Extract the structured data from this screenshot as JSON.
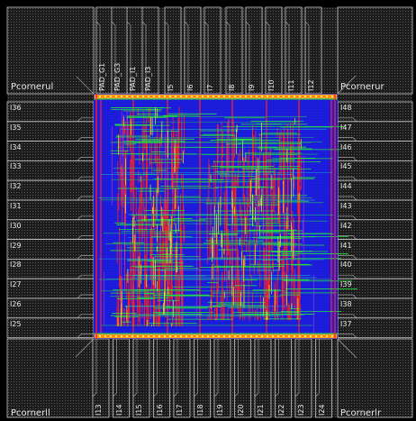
{
  "corners": {
    "ul": "Pcornerul",
    "ur": "Pcornerur",
    "ll": "Pcornerll",
    "lr": "Pcornerlr"
  },
  "pads": {
    "top": [
      "PAD_G1",
      "PAD_G3",
      "PAD_I1",
      "PAD_I3",
      "I5",
      "I6",
      "I7",
      "I8",
      "I9",
      "I10",
      "I11",
      "I12"
    ],
    "left": [
      "I36",
      "I35",
      "I34",
      "I33",
      "I32",
      "I31",
      "I30",
      "I29",
      "I28",
      "I27",
      "I26",
      "I25"
    ],
    "right": [
      "I48",
      "I47",
      "I46",
      "I45",
      "I44",
      "I43",
      "I42",
      "I41",
      "I40",
      "I39",
      "I38",
      "I37"
    ],
    "bottom": [
      "I13",
      "I14",
      "I15",
      "I16",
      "I17",
      "I18",
      "I19",
      "I20",
      "I21",
      "I22",
      "I23",
      "I24"
    ]
  },
  "colors": {
    "background": "#000000",
    "pad_fill": "#2a2a2a",
    "pad_outline": "#c8c8c8",
    "core": "#1a1ad8",
    "power_ring": "#ff8a00",
    "route_red": "#ff2020",
    "route_green": "#20e040",
    "route_yellow": "#f0f020",
    "route_magenta": "#d040d0"
  }
}
